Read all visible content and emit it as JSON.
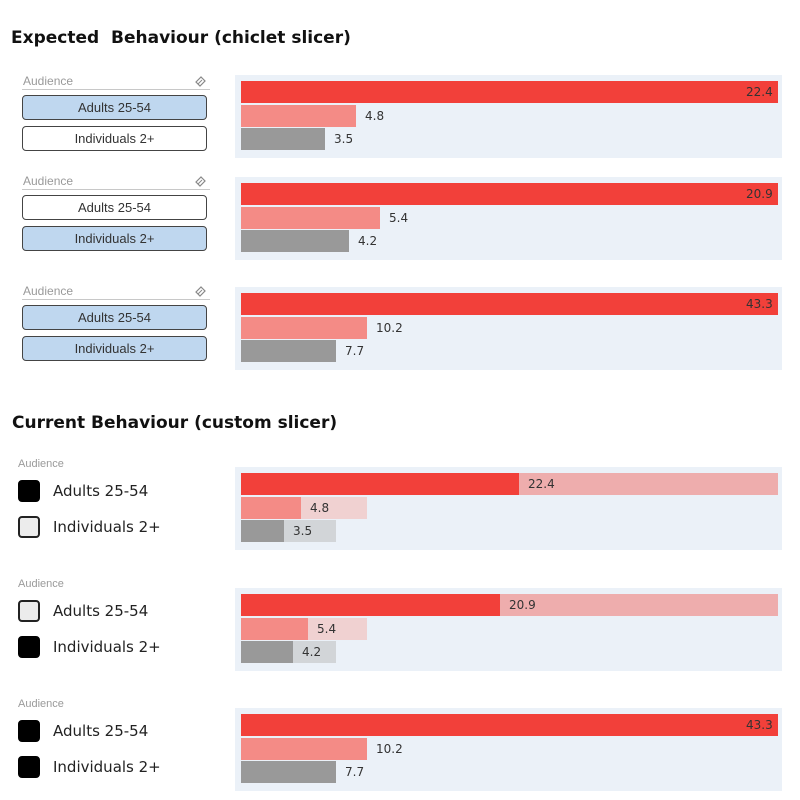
{
  "expected_heading": "Expected  Behaviour (chiclet slicer)",
  "current_heading": "Current Behaviour (custom slicer)",
  "icons": {
    "eraser": "eraser-icon",
    "checkbox_checked": "checkbox-checked-icon",
    "checkbox_unchecked": "checkbox-unchecked-icon"
  },
  "colors": {
    "red": "#f2403a",
    "pink": "#f48b86",
    "gray": "#999999",
    "chart_bg": "#ebf1f8",
    "chip_selected": "#bfd7ef"
  },
  "expected": [
    {
      "slicer": {
        "header": "Audience",
        "options": [
          {
            "label": "Adults 25-54",
            "selected": true
          },
          {
            "label": "Individuals 2+",
            "selected": false
          }
        ]
      },
      "bars": [
        {
          "value": 22.4,
          "label": "22.4"
        },
        {
          "value": 4.8,
          "label": "4.8"
        },
        {
          "value": 3.5,
          "label": "3.5"
        }
      ]
    },
    {
      "slicer": {
        "header": "Audience",
        "options": [
          {
            "label": "Adults 25-54",
            "selected": false
          },
          {
            "label": "Individuals 2+",
            "selected": true
          }
        ]
      },
      "bars": [
        {
          "value": 20.9,
          "label": "20.9"
        },
        {
          "value": 5.4,
          "label": "5.4"
        },
        {
          "value": 4.2,
          "label": "4.2"
        }
      ]
    },
    {
      "slicer": {
        "header": "Audience",
        "options": [
          {
            "label": "Adults 25-54",
            "selected": true
          },
          {
            "label": "Individuals 2+",
            "selected": true
          }
        ]
      },
      "bars": [
        {
          "value": 43.3,
          "label": "43.3"
        },
        {
          "value": 10.2,
          "label": "10.2"
        },
        {
          "value": 7.7,
          "label": "7.7"
        }
      ]
    }
  ],
  "current": [
    {
      "slicer": {
        "header": "Audience",
        "options": [
          {
            "label": "Adults 25-54",
            "checked": true
          },
          {
            "label": "Individuals 2+",
            "checked": false
          }
        ]
      },
      "bars": [
        {
          "value": 22.4,
          "label": "22.4",
          "track": 43.3
        },
        {
          "value": 4.8,
          "label": "4.8",
          "track": 10.2
        },
        {
          "value": 3.5,
          "label": "3.5",
          "track": 7.7
        }
      ]
    },
    {
      "slicer": {
        "header": "Audience",
        "options": [
          {
            "label": "Adults 25-54",
            "checked": false
          },
          {
            "label": "Individuals 2+",
            "checked": true
          }
        ]
      },
      "bars": [
        {
          "value": 20.9,
          "label": "20.9",
          "track": 43.3
        },
        {
          "value": 5.4,
          "label": "5.4",
          "track": 10.2
        },
        {
          "value": 4.2,
          "label": "4.2",
          "track": 7.7
        }
      ]
    },
    {
      "slicer": {
        "header": "Audience",
        "options": [
          {
            "label": "Adults 25-54",
            "checked": true
          },
          {
            "label": "Individuals 2+",
            "checked": true
          }
        ]
      },
      "bars": [
        {
          "value": 43.3,
          "label": "43.3"
        },
        {
          "value": 10.2,
          "label": "10.2"
        },
        {
          "value": 7.7,
          "label": "7.7"
        }
      ]
    }
  ]
}
